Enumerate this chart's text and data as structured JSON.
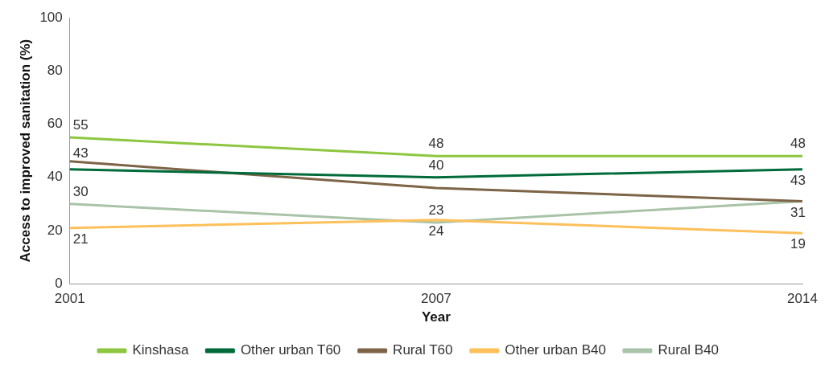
{
  "chart_data": {
    "type": "line",
    "xlabel": "Year",
    "ylabel": "Access to improved sanitation (%)",
    "categories": [
      "2001",
      "2007",
      "2014"
    ],
    "ylim": [
      0,
      100
    ],
    "yticks": [
      0,
      20,
      40,
      60,
      80,
      100
    ],
    "grid": false,
    "legend": "bottom",
    "marker": "none",
    "line_style": "solid",
    "series": [
      {
        "name": "Kinshasa",
        "color": "#8dc63f",
        "values": [
          55,
          48,
          48
        ],
        "value_labels": [
          "55",
          "48",
          "48"
        ]
      },
      {
        "name": "Other urban T60",
        "color": "#006b3a",
        "values": [
          43,
          40,
          43
        ],
        "value_labels": [
          "43",
          "40",
          "43"
        ]
      },
      {
        "name": "Rural T60",
        "color": "#7d6447",
        "values": [
          46,
          36,
          31
        ],
        "value_labels": [
          null,
          null,
          null
        ]
      },
      {
        "name": "Other urban B40",
        "color": "#fdc05a",
        "values": [
          21,
          24,
          19
        ],
        "value_labels": [
          "21",
          "24",
          "19"
        ]
      },
      {
        "name": "Rural B40",
        "color": "#a9c3a8",
        "values": [
          30,
          23,
          31
        ],
        "value_labels": [
          "30",
          "23",
          "31"
        ]
      }
    ]
  }
}
